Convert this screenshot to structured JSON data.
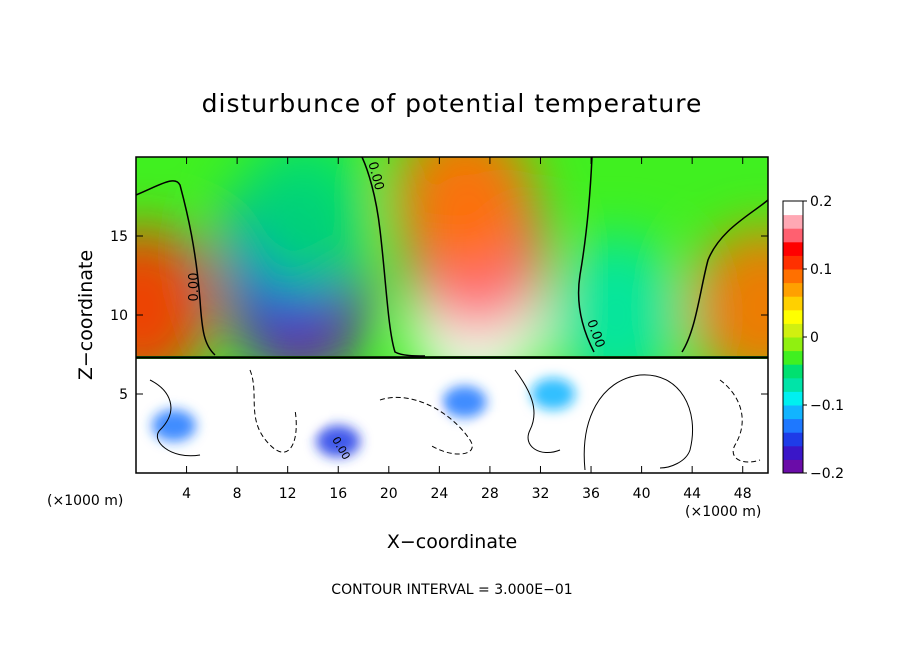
{
  "chart_data": {
    "type": "heatmap",
    "title": "disturbunce of potential temperature",
    "xlabel": "X−coordinate",
    "ylabel": "Z−coordinate",
    "x_unit_left": "(×1000 m)",
    "x_unit_right": "(×1000 m)",
    "xlim": [
      0,
      50
    ],
    "ylim": [
      0,
      20
    ],
    "x_ticks": [
      4,
      8,
      12,
      16,
      20,
      24,
      28,
      32,
      36,
      40,
      44,
      48
    ],
    "x_tick_labels": [
      "4",
      "8",
      "12",
      "16",
      "20",
      "24",
      "28",
      "32",
      "36",
      "40",
      "44",
      "48"
    ],
    "y_ticks": [
      5,
      10,
      15
    ],
    "y_tick_labels": [
      "5",
      "10",
      "15"
    ],
    "colorbar": {
      "range": [
        -0.2,
        0.2
      ],
      "tick_values": [
        0.2,
        0.1,
        0,
        -0.1,
        -0.2
      ],
      "tick_labels": [
        "0.2",
        "0.1",
        "0",
        "−0.1",
        "−0.2"
      ],
      "colors": [
        "#6a0ca8",
        "#3a16c8",
        "#1e3ce8",
        "#1e78ff",
        "#12b4ff",
        "#00f0f0",
        "#00e4a8",
        "#00e070",
        "#40f020",
        "#90f010",
        "#d0f010",
        "#ffff00",
        "#ffd000",
        "#ffa000",
        "#ff7000",
        "#ff3000",
        "#ff0000",
        "#ff6070",
        "#ffa8b4",
        "#ffffff"
      ]
    },
    "contour_labels": [
      "0.00",
      "0.00",
      "0.00",
      "0.00"
    ],
    "footer": "CONTOUR INTERVAL = 3.000E−01",
    "interface_height": 7.3,
    "upper_anomalies": [
      {
        "x": 0.5,
        "z": 10.5,
        "value": 0.1
      },
      {
        "x": 13,
        "z": 11,
        "value": -0.2
      },
      {
        "x": 12,
        "z": 14,
        "value": -0.15
      },
      {
        "x": 13.5,
        "z": 16.5,
        "value": -0.06
      },
      {
        "x": 27,
        "z": 10,
        "value": 0.18
      },
      {
        "x": 27,
        "z": 14,
        "value": 0.14
      },
      {
        "x": 26,
        "z": 17.5,
        "value": 0.09
      },
      {
        "x": 38,
        "z": 10,
        "value": -0.08
      },
      {
        "x": 49.5,
        "z": 10.5,
        "value": 0.09
      }
    ],
    "lower_anomalies": [
      {
        "x": 3,
        "z": 3,
        "value": -0.14
      },
      {
        "x": 8.5,
        "z": 3.5,
        "value": 0.2
      },
      {
        "x": 12.5,
        "z": 4,
        "value": 0.2
      },
      {
        "x": 16,
        "z": 2,
        "value": -0.16
      },
      {
        "x": 22,
        "z": 3.5,
        "value": 0.2
      },
      {
        "x": 26,
        "z": 4.5,
        "value": -0.14
      },
      {
        "x": 29,
        "z": 2,
        "value": 0.2
      },
      {
        "x": 33,
        "z": 5,
        "value": -0.12
      },
      {
        "x": 38,
        "z": 3,
        "value": 0.2
      },
      {
        "x": 46.5,
        "z": 3,
        "value": 0.2
      }
    ]
  }
}
